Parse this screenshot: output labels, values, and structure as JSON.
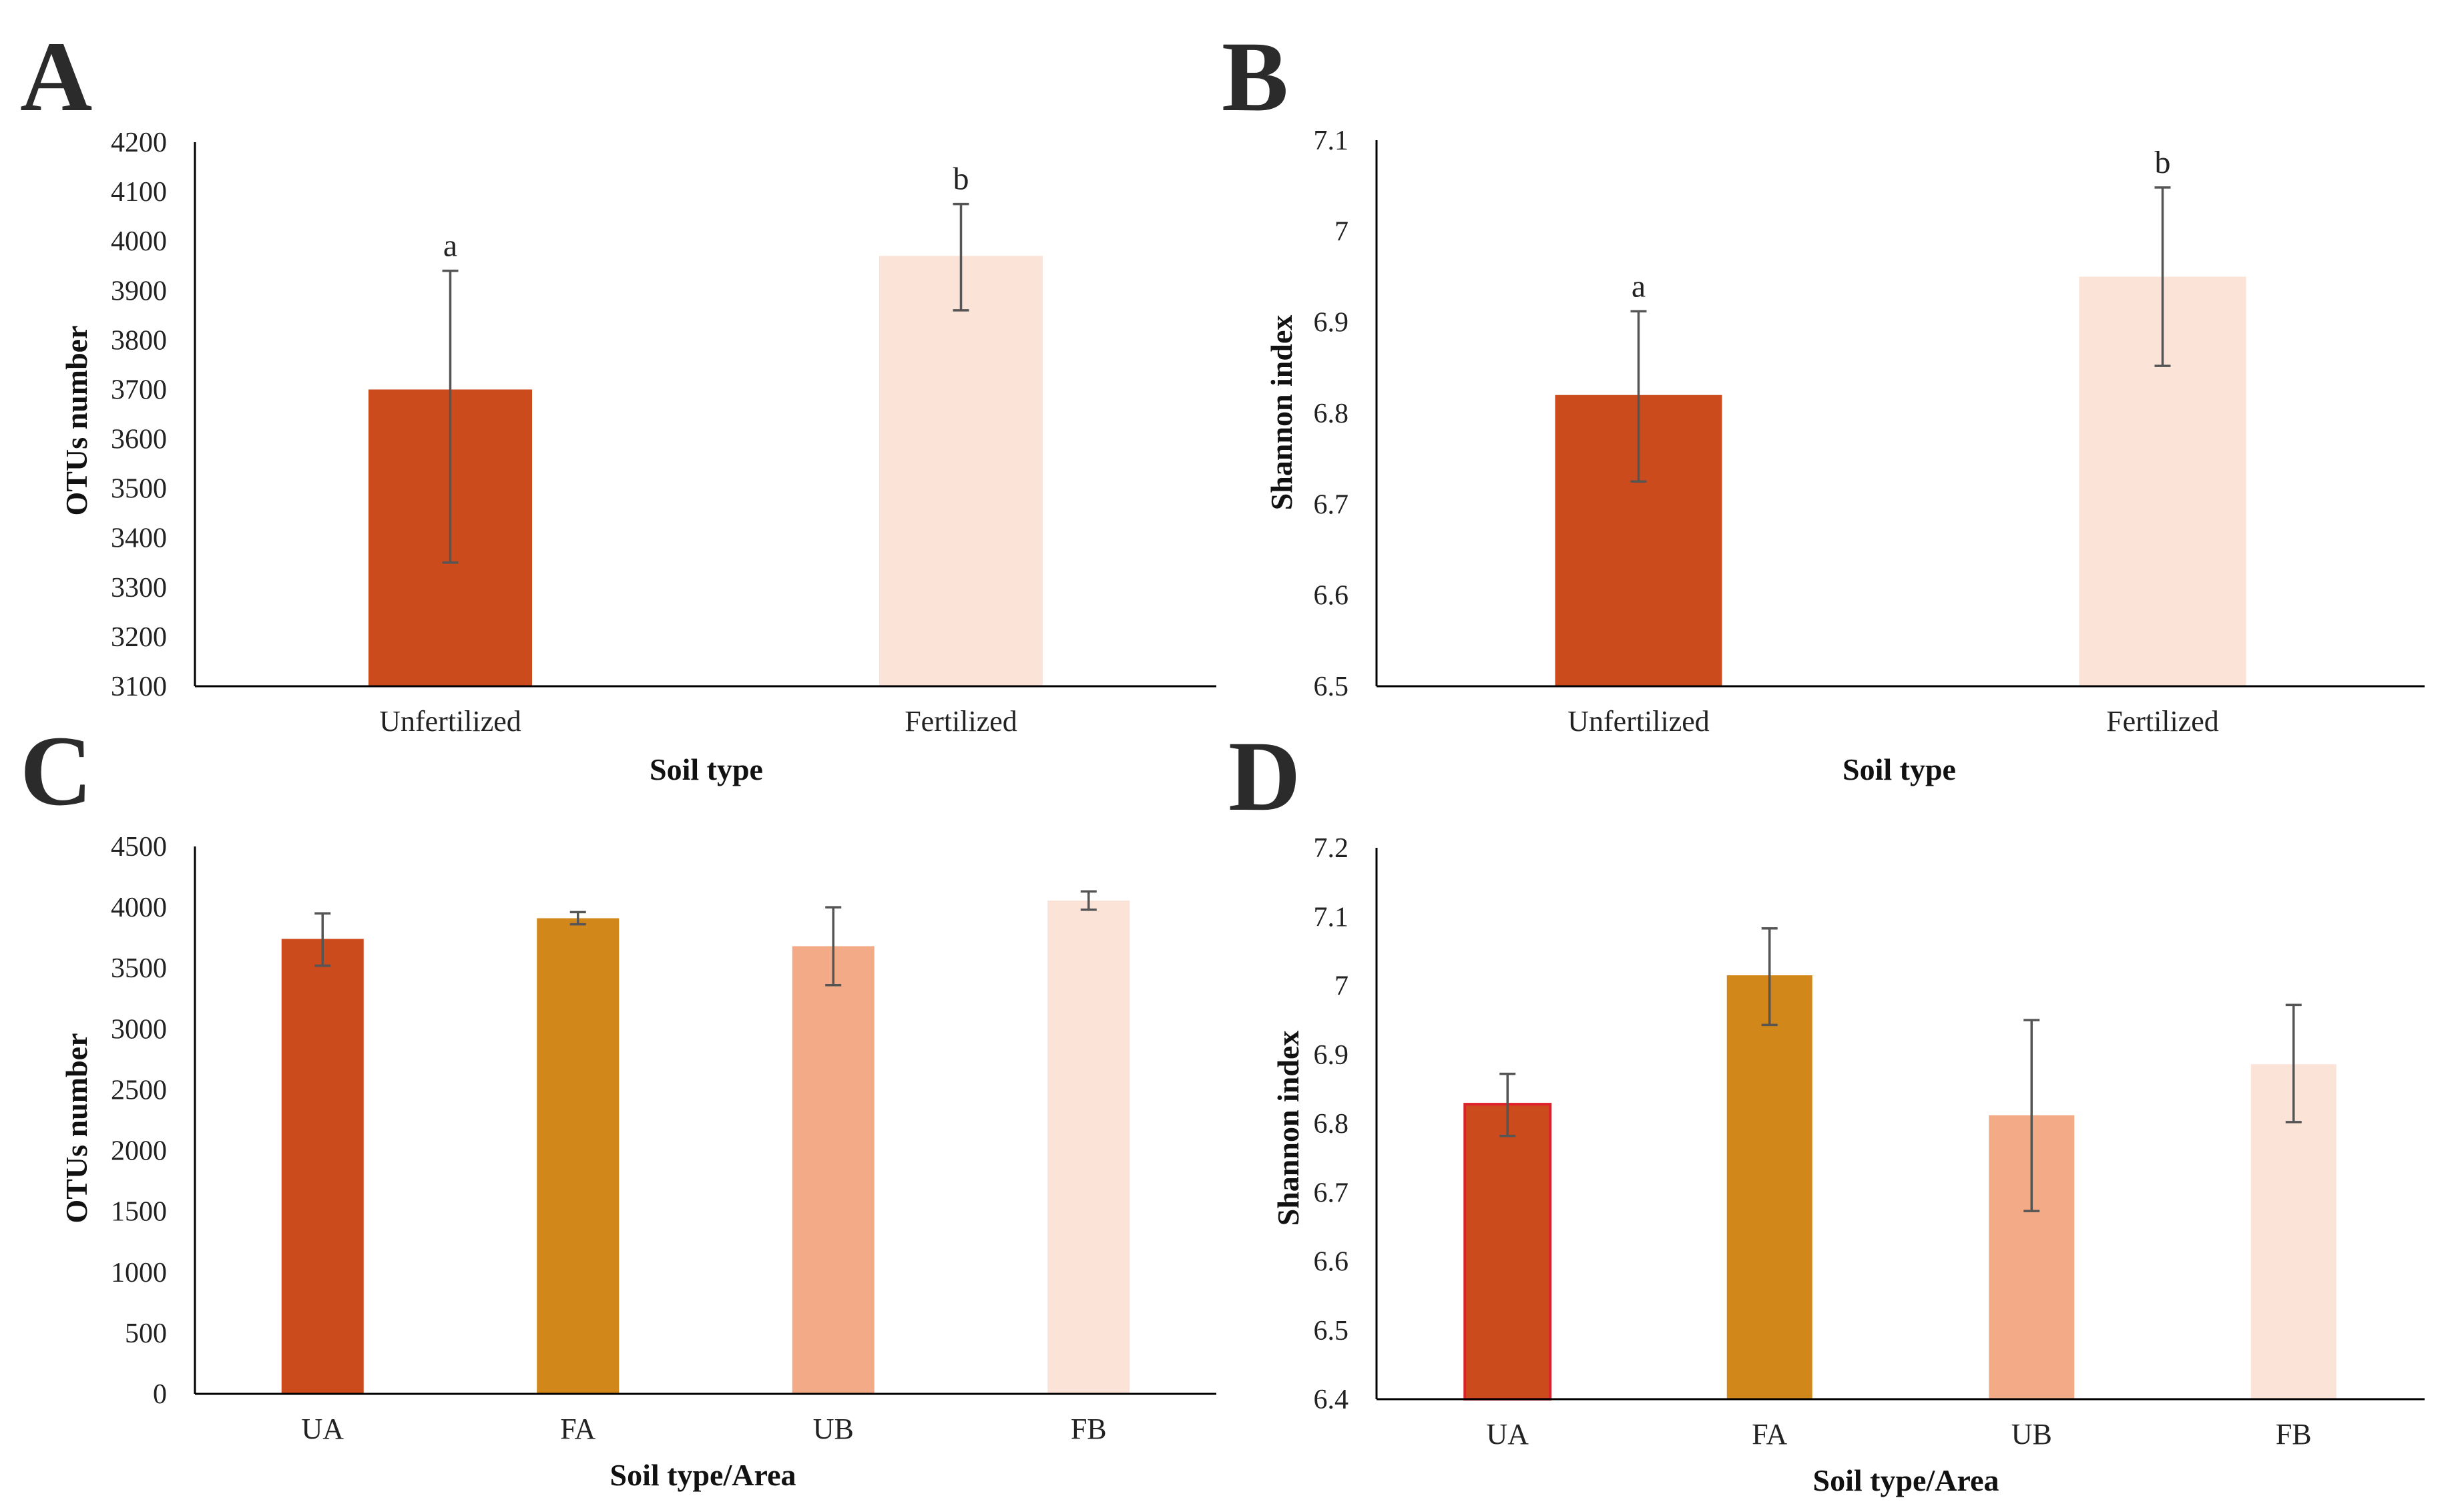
{
  "chart_data": [
    {
      "panel": "A",
      "type": "bar",
      "title": "",
      "categories": [
        "Unfertilized",
        "Fertilized"
      ],
      "values": [
        3700,
        3970
      ],
      "errors": [
        [
          3350,
          3940
        ],
        [
          3860,
          4075
        ]
      ],
      "significance": [
        "a",
        "b"
      ],
      "colors": [
        "#cc4b1c",
        "#fbe3d7"
      ],
      "xlabel": "Soil type",
      "ylabel": "OTUs number",
      "ylim": [
        3100,
        4200
      ],
      "yticks": [
        "3100",
        "3200",
        "3300",
        "3400",
        "3500",
        "3600",
        "3700",
        "3800",
        "3900",
        "4000",
        "4100",
        "4200"
      ],
      "grid": false
    },
    {
      "panel": "B",
      "type": "bar",
      "title": "",
      "categories": [
        "Unfertilized",
        "Fertilized"
      ],
      "values": [
        6.82,
        6.95
      ],
      "errors": [
        [
          6.725,
          6.912
        ],
        [
          6.852,
          7.048
        ]
      ],
      "significance": [
        "a",
        "b"
      ],
      "colors": [
        "#cc4b1c",
        "#fbe3d7"
      ],
      "xlabel": "Soil type",
      "ylabel": "Shannon index",
      "ylim": [
        6.5,
        7.1
      ],
      "yticks": [
        "6.5",
        "6.6",
        "6.7",
        "6.8",
        "6.9",
        "7",
        "7.1"
      ],
      "grid": false
    },
    {
      "panel": "C",
      "type": "bar",
      "title": "",
      "categories": [
        "UA",
        "FA",
        "UB",
        "FB"
      ],
      "values": [
        3740,
        3910,
        3680,
        4055
      ],
      "errors": [
        [
          3520,
          3950
        ],
        [
          3860,
          3960
        ],
        [
          3360,
          4000
        ],
        [
          3980,
          4130
        ]
      ],
      "significance": [
        "",
        "",
        "",
        ""
      ],
      "colors": [
        "#cc4b1c",
        "#d2871a",
        "#f2ab86",
        "#fbe3d7"
      ],
      "xlabel": "Soil type/Area",
      "ylabel": "OTUs number",
      "ylim": [
        0,
        4500
      ],
      "yticks": [
        "0",
        "500",
        "1000",
        "1500",
        "2000",
        "2500",
        "3000",
        "3500",
        "4000",
        "4500"
      ],
      "grid": false
    },
    {
      "panel": "D",
      "type": "bar",
      "title": "",
      "categories": [
        "UA",
        "FA",
        "UB",
        "FB"
      ],
      "values": [
        6.828,
        7.015,
        6.812,
        6.886
      ],
      "errors": [
        [
          6.782,
          6.872
        ],
        [
          6.943,
          7.083
        ],
        [
          6.673,
          6.95
        ],
        [
          6.802,
          6.972
        ]
      ],
      "significance": [
        "",
        "",
        "",
        ""
      ],
      "colors": [
        "#cc4b1c",
        "#d2871a",
        "#f2ab86",
        "#fbe3d7"
      ],
      "first_bar_outline": "#e0202a",
      "xlabel": "Soil type/Area",
      "ylabel": "Shannon index",
      "ylim": [
        6.4,
        7.2
      ],
      "yticks": [
        "6.4",
        "6.5",
        "6.6",
        "6.7",
        "6.8",
        "6.9",
        "7",
        "7.1",
        "7.2"
      ],
      "grid": false
    }
  ],
  "error_bar_color": "#555555",
  "axis_color": "#000000"
}
